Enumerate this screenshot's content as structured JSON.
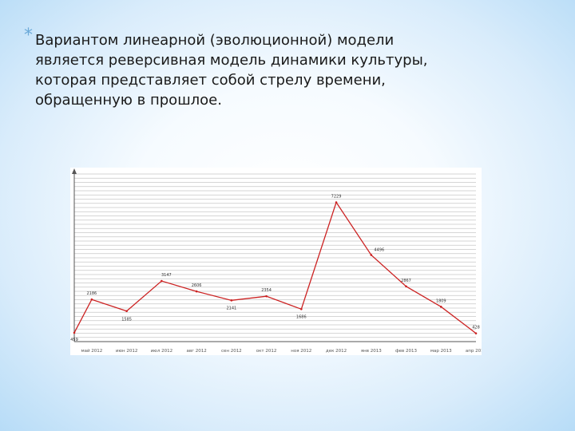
{
  "slide": {
    "bullet": "*",
    "lines": [
      "Вариантом линеарной (эволюционной) модели",
      "является реверсивная модель динамики культуры,",
      "которая представляет собой стрелу времени,",
      "обращенную в прошлое."
    ]
  },
  "colors": {
    "line": "#cc2222",
    "grid": "#c8c8c8",
    "axis": "#555555"
  },
  "chart_data": {
    "type": "line",
    "title": "",
    "xlabel": "",
    "ylabel": "",
    "categories": [
      "",
      "май 2012",
      "",
      "июн 2012",
      "",
      "июл 2012",
      "",
      "авг 2012",
      "",
      "сен 2012",
      "",
      "окт 2012",
      "",
      "ноя 2012",
      "",
      "дек 2012",
      "",
      "янв 2013",
      "",
      "фев 2013",
      "",
      "мар 2013",
      "",
      "апр 2013"
    ],
    "series": [
      {
        "values": [
          459,
          2186,
          null,
          1585,
          null,
          3147,
          null,
          2606,
          null,
          2141,
          null,
          2354,
          null,
          1686,
          null,
          7229,
          null,
          4496,
          null,
          2867,
          null,
          1809,
          null,
          428
        ]
      }
    ],
    "data_labels": [
      "459",
      "2186",
      "1585",
      "3147",
      "2606",
      "2141",
      "2354",
      "1686",
      "7229",
      "4496",
      "2867",
      "1809",
      "428"
    ],
    "ylim": [
      0,
      8700
    ],
    "grid": true
  }
}
